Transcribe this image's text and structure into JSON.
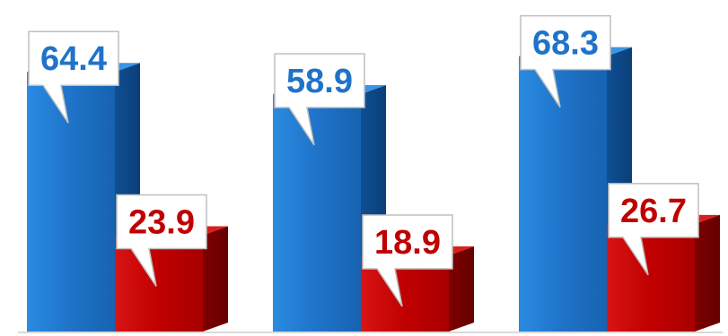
{
  "chart_data": {
    "type": "bar",
    "title": "",
    "xlabel": "",
    "ylabel": "",
    "categories": [
      "",
      "",
      ""
    ],
    "series": [
      {
        "values": [
          64.4,
          58.9,
          68.3
        ],
        "color": "#1f73c9"
      },
      {
        "values": [
          23.9,
          18.9,
          26.7
        ],
        "color": "#c00000"
      }
    ],
    "ylim": [
      0,
      75
    ],
    "grid": false,
    "legend": "none",
    "labels": [
      [
        "64.4",
        "58.9",
        "68.3"
      ],
      [
        "23.9",
        "18.9",
        "26.7"
      ]
    ]
  }
}
